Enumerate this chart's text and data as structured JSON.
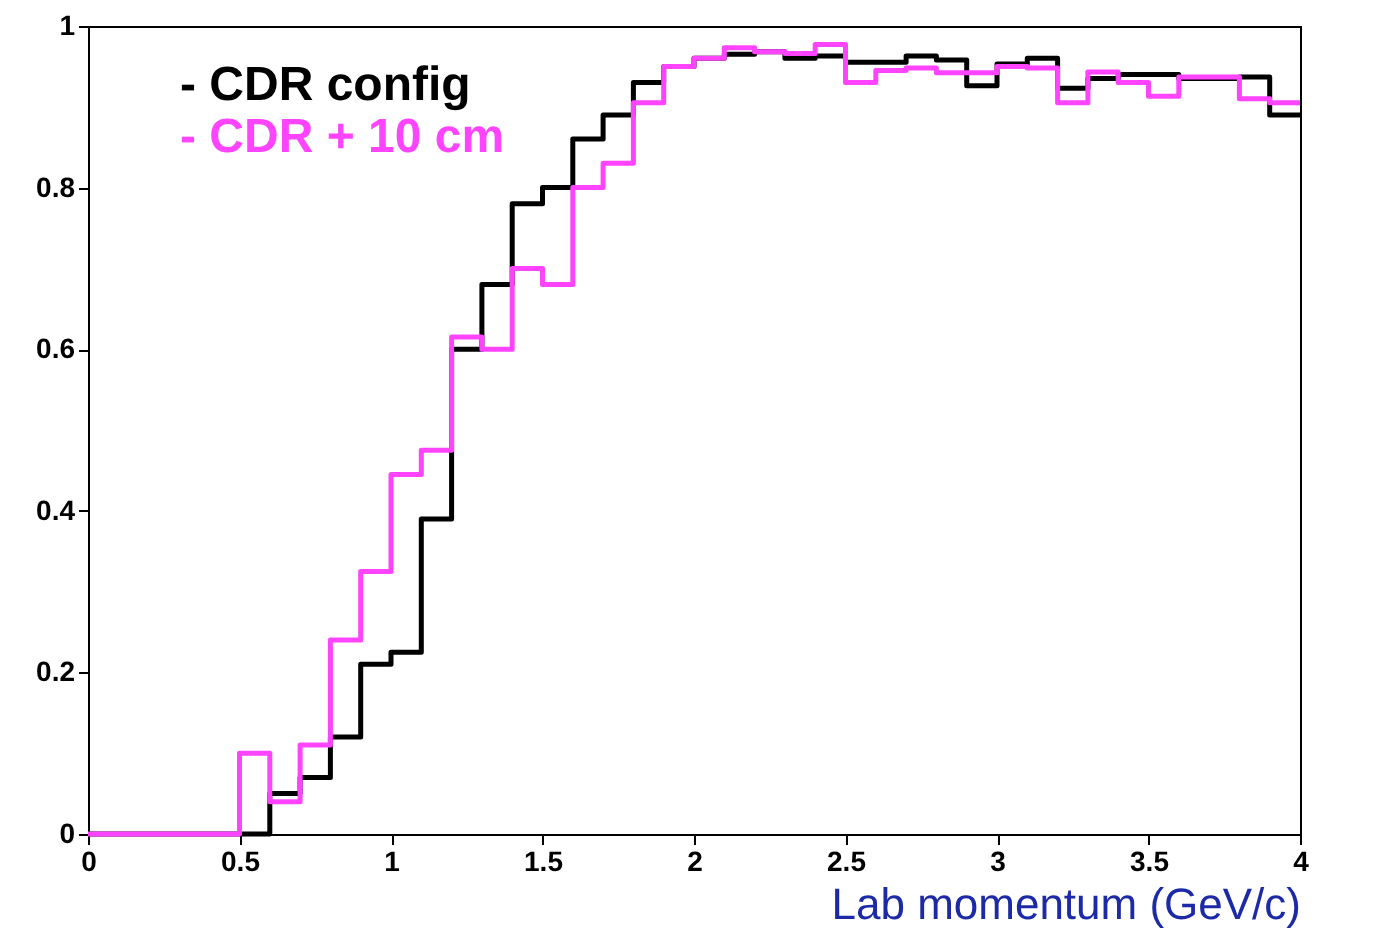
{
  "chart_data": {
    "type": "histogram",
    "xlabel": "Lab momentum (GeV/c)",
    "bins": [
      0,
      0.1,
      0.2,
      0.3,
      0.4,
      0.5,
      0.6,
      0.7,
      0.8,
      0.9,
      1,
      1.1,
      1.2,
      1.3,
      1.4,
      1.5,
      1.6,
      1.7,
      1.8,
      1.9,
      2,
      2.1,
      2.2,
      2.3,
      2.4,
      2.5,
      2.6,
      2.7,
      2.8,
      2.9,
      3,
      3.1,
      3.2,
      3.3,
      3.4,
      3.5,
      3.6,
      3.7,
      3.8,
      3.9,
      4
    ],
    "series": [
      {
        "name": "- CDR config",
        "color": "#000000",
        "values": [
          0,
          0,
          0,
          0,
          0,
          0,
          0.05,
          0.07,
          0.12,
          0.21,
          0.225,
          0.39,
          0.6,
          0.68,
          0.78,
          0.8,
          0.86,
          0.89,
          0.93,
          0.95,
          0.96,
          0.965,
          0.968,
          0.96,
          0.963,
          0.955,
          0.955,
          0.963,
          0.958,
          0.926,
          0.953,
          0.96,
          0.923,
          0.935,
          0.94,
          0.94,
          0.935,
          0.935,
          0.937,
          0.89
        ]
      },
      {
        "name": "- CDR + 10 cm",
        "color": "#ff44ff",
        "values": [
          0,
          0,
          0,
          0,
          0,
          0.1,
          0.04,
          0.11,
          0.24,
          0.325,
          0.445,
          0.475,
          0.615,
          0.6,
          0.7,
          0.68,
          0.8,
          0.83,
          0.905,
          0.95,
          0.96,
          0.973,
          0.968,
          0.966,
          0.977,
          0.93,
          0.945,
          0.948,
          0.942,
          0.942,
          0.95,
          0.948,
          0.905,
          0.943,
          0.93,
          0.913,
          0.937,
          0.937,
          0.91,
          0.905
        ]
      }
    ],
    "xlim": [
      0,
      4
    ],
    "xticks": [
      0,
      0.5,
      1,
      1.5,
      2,
      2.5,
      3,
      3.5,
      4
    ],
    "ylim": [
      0,
      1
    ],
    "yticks": [
      0,
      0.2,
      0.4,
      0.6,
      0.8,
      1
    ],
    "legend": "top left",
    "grid": false
  }
}
